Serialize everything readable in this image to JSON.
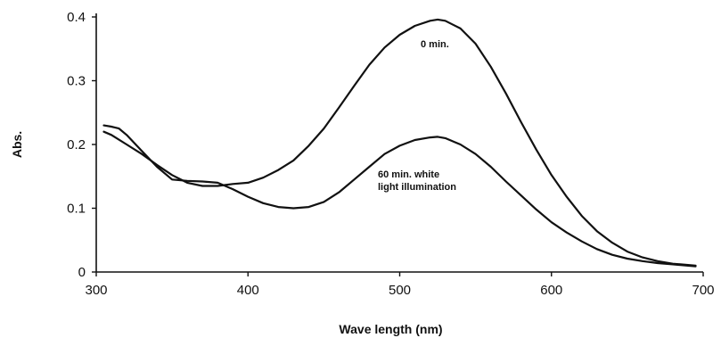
{
  "chart_data": {
    "type": "line",
    "title": "",
    "xlabel": "Wave length (nm)",
    "ylabel": "Abs.",
    "xlim": [
      300,
      700
    ],
    "ylim": [
      0,
      0.4
    ],
    "x_ticks": [
      300,
      400,
      500,
      600,
      700
    ],
    "y_ticks": [
      0,
      0.1,
      0.2,
      0.3,
      0.4
    ],
    "x_tick_labels": [
      "300",
      "400",
      "500",
      "600",
      "700"
    ],
    "y_tick_labels": [
      "0",
      "0.1",
      "0.2",
      "0.3",
      "0.4"
    ],
    "grid": false,
    "legend": "none",
    "line_color": "#111111",
    "series": [
      {
        "name": "",
        "annotation": "0 min.",
        "points": [
          [
            305,
            0.22
          ],
          [
            310,
            0.215
          ],
          [
            320,
            0.2
          ],
          [
            330,
            0.185
          ],
          [
            340,
            0.168
          ],
          [
            350,
            0.152
          ],
          [
            360,
            0.14
          ],
          [
            370,
            0.135
          ],
          [
            380,
            0.135
          ],
          [
            390,
            0.138
          ],
          [
            400,
            0.14
          ],
          [
            410,
            0.148
          ],
          [
            420,
            0.16
          ],
          [
            430,
            0.175
          ],
          [
            440,
            0.198
          ],
          [
            450,
            0.225
          ],
          [
            460,
            0.258
          ],
          [
            470,
            0.292
          ],
          [
            480,
            0.325
          ],
          [
            490,
            0.352
          ],
          [
            500,
            0.372
          ],
          [
            510,
            0.386
          ],
          [
            520,
            0.394
          ],
          [
            525,
            0.396
          ],
          [
            530,
            0.394
          ],
          [
            540,
            0.382
          ],
          [
            550,
            0.358
          ],
          [
            560,
            0.322
          ],
          [
            570,
            0.28
          ],
          [
            580,
            0.235
          ],
          [
            590,
            0.192
          ],
          [
            600,
            0.152
          ],
          [
            610,
            0.118
          ],
          [
            620,
            0.088
          ],
          [
            630,
            0.064
          ],
          [
            640,
            0.046
          ],
          [
            650,
            0.032
          ],
          [
            660,
            0.023
          ],
          [
            670,
            0.017
          ],
          [
            680,
            0.013
          ],
          [
            690,
            0.011
          ],
          [
            695,
            0.01
          ]
        ]
      },
      {
        "name": "",
        "annotation": "60 min. white\nlight illumination",
        "points": [
          [
            305,
            0.23
          ],
          [
            310,
            0.228
          ],
          [
            315,
            0.225
          ],
          [
            320,
            0.215
          ],
          [
            330,
            0.19
          ],
          [
            340,
            0.165
          ],
          [
            350,
            0.145
          ],
          [
            360,
            0.143
          ],
          [
            370,
            0.142
          ],
          [
            380,
            0.14
          ],
          [
            390,
            0.13
          ],
          [
            400,
            0.118
          ],
          [
            410,
            0.108
          ],
          [
            420,
            0.102
          ],
          [
            430,
            0.1
          ],
          [
            440,
            0.102
          ],
          [
            450,
            0.11
          ],
          [
            460,
            0.125
          ],
          [
            470,
            0.145
          ],
          [
            480,
            0.165
          ],
          [
            490,
            0.185
          ],
          [
            500,
            0.198
          ],
          [
            510,
            0.207
          ],
          [
            520,
            0.211
          ],
          [
            525,
            0.212
          ],
          [
            530,
            0.21
          ],
          [
            540,
            0.2
          ],
          [
            550,
            0.185
          ],
          [
            560,
            0.165
          ],
          [
            570,
            0.142
          ],
          [
            580,
            0.12
          ],
          [
            590,
            0.098
          ],
          [
            600,
            0.078
          ],
          [
            610,
            0.062
          ],
          [
            620,
            0.048
          ],
          [
            630,
            0.036
          ],
          [
            640,
            0.027
          ],
          [
            650,
            0.021
          ],
          [
            660,
            0.017
          ],
          [
            670,
            0.014
          ],
          [
            680,
            0.012
          ],
          [
            690,
            0.01
          ],
          [
            695,
            0.009
          ]
        ]
      }
    ]
  }
}
